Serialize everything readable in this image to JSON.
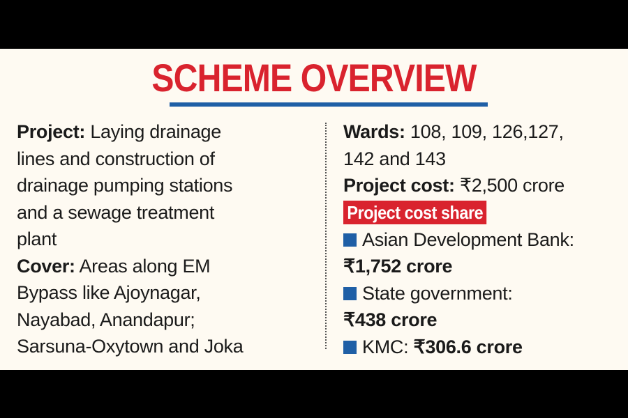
{
  "title": "SCHEME OVERVIEW",
  "left": {
    "project_label": "Project:",
    "project_lines": [
      "Laying drainage",
      "lines and construction of",
      "drainage pumping stations",
      "and a sewage treatment",
      "plant"
    ],
    "cover_label": "Cover:",
    "cover_lines": [
      "Areas along EM",
      "Bypass like Ajoynagar,",
      "Nayabad, Anandapur;",
      "Sarsuna-Oxytown and Joka"
    ]
  },
  "right": {
    "wards_label": "Wards:",
    "wards_lines": [
      "108, 109, 126,127,",
      "142 and 143"
    ],
    "cost_label": "Project cost:",
    "cost_value": "₹2,500 crore",
    "share_heading": "Project cost share",
    "shares": [
      {
        "name": "Asian Development Bank:",
        "amount": "₹1,752 crore"
      },
      {
        "name": "State government:",
        "amount": "₹438 crore"
      },
      {
        "name": "KMC:",
        "amount": "₹306.6 crore"
      }
    ]
  },
  "colors": {
    "title_red": "#d9232e",
    "accent_blue": "#1f5fa6",
    "paper": "#fefaf2"
  }
}
